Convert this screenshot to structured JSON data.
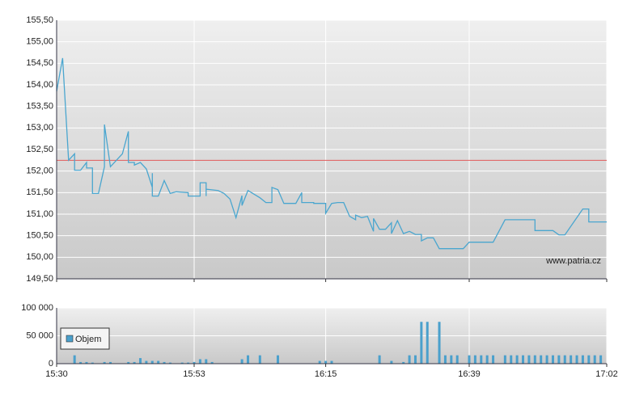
{
  "chart_data": [
    {
      "type": "line",
      "color": "#4aa6cf",
      "annotation": "www.patria.cz",
      "reference": 152.25,
      "reference_color": "#e05a5a",
      "grid": true,
      "ylim": [
        149.5,
        155.5
      ],
      "yticks": [
        {
          "value": 149.5,
          "label": "149,50"
        },
        {
          "value": 150,
          "label": "150,00"
        },
        {
          "value": 150.5,
          "label": "150,50"
        },
        {
          "value": 151,
          "label": "151,00"
        },
        {
          "value": 151.5,
          "label": "151,50"
        },
        {
          "value": 152,
          "label": "152,00"
        },
        {
          "value": 152.5,
          "label": "152,50"
        },
        {
          "value": 153,
          "label": "153,00"
        },
        {
          "value": 153.5,
          "label": "153,50"
        },
        {
          "value": 154,
          "label": "154,00"
        },
        {
          "value": 154.5,
          "label": "154,50"
        },
        {
          "value": 155,
          "label": "155,00"
        },
        {
          "value": 155.5,
          "label": "155,50"
        }
      ],
      "x": [
        "15:30",
        "15:31",
        "15:32",
        "15:33",
        "15:33",
        "15:34",
        "15:35",
        "15:35",
        "15:36",
        "15:36",
        "15:37",
        "15:38",
        "15:38",
        "15:38",
        "15:39",
        "15:41",
        "15:42",
        "15:42",
        "15:43",
        "15:43",
        "15:44",
        "15:45",
        "15:46",
        "15:46",
        "15:46",
        "15:47",
        "15:48",
        "15:49",
        "15:50",
        "15:52",
        "15:52",
        "15:54",
        "15:54",
        "15:55",
        "15:55",
        "15:55",
        "15:57",
        "15:58",
        "15:59",
        "16:00",
        "16:01",
        "16:01",
        "16:01",
        "16:02",
        "16:04",
        "16:05",
        "16:06",
        "16:06",
        "16:07",
        "16:07",
        "16:08",
        "16:10",
        "16:11",
        "16:11",
        "16:13",
        "16:13",
        "16:15",
        "16:15",
        "16:16",
        "16:17",
        "16:18",
        "16:19",
        "16:20",
        "16:20",
        "16:21",
        "16:21",
        "16:22",
        "16:23",
        "16:23",
        "16:24",
        "16:25",
        "16:26",
        "16:26",
        "16:27",
        "16:28",
        "16:29",
        "16:30",
        "16:31",
        "16:31",
        "16:32",
        "16:33",
        "16:34",
        "16:38",
        "16:39",
        "16:43",
        "16:45",
        "16:50",
        "16:50",
        "16:53",
        "16:54",
        "16:55",
        "16:58",
        "16:59",
        "16:59",
        "17:02"
      ],
      "values": [
        153.85,
        154.62,
        152.25,
        152.4,
        152.02,
        152.02,
        152.2,
        152.07,
        152.07,
        151.48,
        151.48,
        152.1,
        152.1,
        153.08,
        152.1,
        152.4,
        152.92,
        152.2,
        152.2,
        152.14,
        152.2,
        152.05,
        151.62,
        151.95,
        151.42,
        151.42,
        151.78,
        151.48,
        151.52,
        151.5,
        151.42,
        151.42,
        151.73,
        151.73,
        151.42,
        151.58,
        151.55,
        151.48,
        151.35,
        150.92,
        151.43,
        151.43,
        151.2,
        151.55,
        151.38,
        151.27,
        151.27,
        151.62,
        151.57,
        151.57,
        151.25,
        151.25,
        151.5,
        151.27,
        151.27,
        151.25,
        151.25,
        151.02,
        151.25,
        151.27,
        151.27,
        150.95,
        150.87,
        150.98,
        150.92,
        150.92,
        150.95,
        150.6,
        150.9,
        150.65,
        150.65,
        150.8,
        150.55,
        150.85,
        150.55,
        150.6,
        150.53,
        150.53,
        150.38,
        150.45,
        150.45,
        150.2,
        150.2,
        150.35,
        150.35,
        150.87,
        150.87,
        150.62,
        150.62,
        150.52,
        150.52,
        151.12,
        151.12,
        150.82,
        150.82
      ]
    },
    {
      "type": "bar",
      "legend": "top-left",
      "grid": true,
      "ylim": [
        0,
        100000
      ],
      "yticks": [
        0,
        {
          "value": 50000,
          "label": "50 000"
        },
        {
          "value": 100000,
          "label": "100 000"
        }
      ],
      "xlim": [
        "15:30",
        "17:02"
      ],
      "xticks": [
        "15:30",
        "15:53",
        "16:15",
        "16:39",
        "17:02"
      ],
      "x": [
        "15:33",
        "15:34",
        "15:35",
        "15:36",
        "15:38",
        "15:39",
        "15:42",
        "15:43",
        "15:44",
        "15:45",
        "15:46",
        "15:47",
        "15:48",
        "15:49",
        "15:51",
        "15:52",
        "15:53",
        "15:54",
        "15:55",
        "15:56",
        "16:01",
        "16:02",
        "16:04",
        "16:07",
        "16:14",
        "16:15",
        "16:16",
        "16:24",
        "16:26",
        "16:28",
        "16:29",
        "16:30",
        "16:31",
        "16:32",
        "16:34",
        "16:35",
        "16:36",
        "16:37",
        "16:39",
        "16:40",
        "16:41",
        "16:42",
        "16:43",
        "16:45",
        "16:46",
        "16:47",
        "16:48",
        "16:49",
        "16:50",
        "16:51",
        "16:52",
        "16:53",
        "16:54",
        "16:55",
        "16:56",
        "16:57",
        "16:58",
        "16:59",
        "17:00",
        "17:01"
      ],
      "series": [
        {
          "name": "Objem",
          "color": "#4aa0cc",
          "values": [
            15000,
            3000,
            3000,
            2000,
            3000,
            3000,
            3000,
            3000,
            10000,
            5000,
            5000,
            5000,
            3000,
            2000,
            2000,
            2000,
            3000,
            8000,
            8000,
            3000,
            8000,
            15000,
            15000,
            15000,
            5000,
            5000,
            5000,
            15000,
            5000,
            3000,
            15000,
            15000,
            75000,
            75000,
            75000,
            15000,
            15000,
            15000,
            15000,
            15000,
            15000,
            15000,
            15000,
            15000,
            15000,
            15000,
            15000,
            15000,
            15000,
            15000,
            15000,
            15000,
            15000,
            15000,
            15000,
            15000,
            15000,
            15000,
            15000,
            15000
          ]
        }
      ]
    }
  ]
}
